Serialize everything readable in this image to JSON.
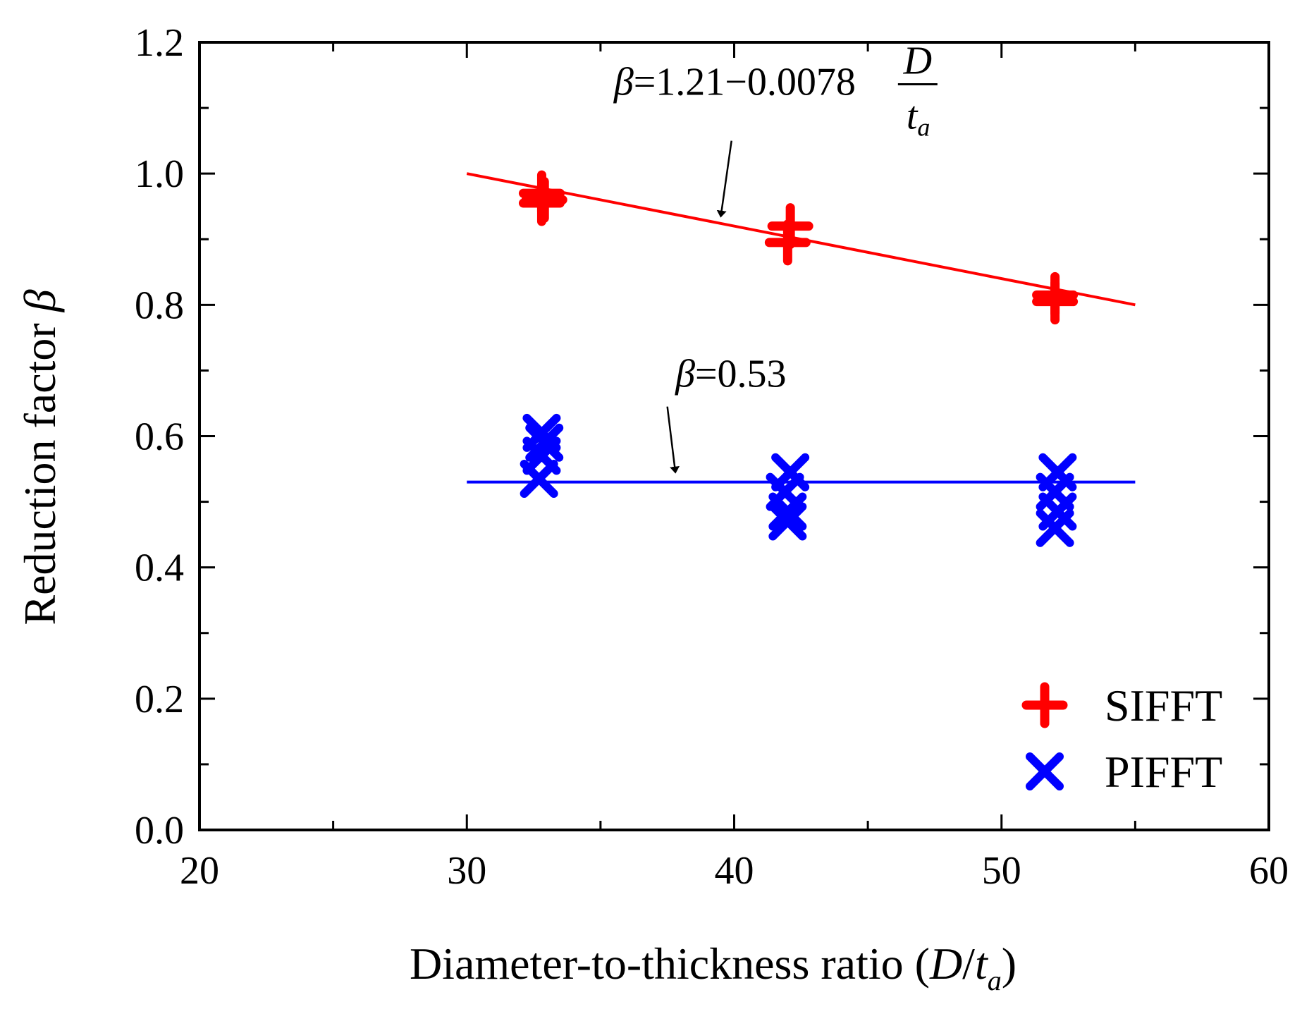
{
  "chart_data": {
    "type": "scatter",
    "title": "",
    "xlabel": "Diameter-to-thickness ratio (",
    "xlabel_var_main": "D",
    "xlabel_slash": "/",
    "xlabel_var_t": "t",
    "xlabel_var_sub": "a",
    "xlabel_close": ")",
    "ylabel": "Reduction factor ",
    "ylabel_var": "β",
    "xlim": [
      20,
      60
    ],
    "ylim": [
      0.0,
      1.2
    ],
    "xticks": [
      "20",
      "30",
      "40",
      "50",
      "60"
    ],
    "yticks": [
      "0.0",
      "0.2",
      "0.4",
      "0.6",
      "0.8",
      "1.0",
      "1.2"
    ],
    "grid": false,
    "legend_position": "bottom-right",
    "series": [
      {
        "name": "SIFFT",
        "marker": "plus",
        "color": "#ff0000",
        "points": [
          [
            32.8,
            0.97
          ],
          [
            32.8,
            0.955
          ],
          [
            32.9,
            0.96
          ],
          [
            42.1,
            0.92
          ],
          [
            42.0,
            0.895
          ],
          [
            52.0,
            0.815
          ],
          [
            52.0,
            0.805
          ]
        ]
      },
      {
        "name": "PIFFT",
        "marker": "x",
        "color": "#0000ff",
        "points": [
          [
            32.8,
            0.605
          ],
          [
            32.9,
            0.59
          ],
          [
            32.8,
            0.57
          ],
          [
            32.7,
            0.535
          ],
          [
            42.1,
            0.545
          ],
          [
            41.9,
            0.515
          ],
          [
            42.0,
            0.485
          ],
          [
            42.0,
            0.47
          ],
          [
            52.1,
            0.545
          ],
          [
            52.0,
            0.515
          ],
          [
            52.1,
            0.485
          ],
          [
            52.0,
            0.46
          ]
        ]
      }
    ],
    "fits": [
      {
        "name": "SIFFT fit",
        "color": "#ff0000",
        "x": [
          30,
          55
        ],
        "y": [
          1.0,
          0.8
        ],
        "label_symbol": "β",
        "label_text": "=1.21−0.0078",
        "label_frac_num": "D",
        "label_frac_den": "t",
        "label_frac_den_sub": "a",
        "label_anchor": [
          35.5,
          1.12
        ],
        "arrow_from": [
          39.9,
          1.05
        ],
        "arrow_to": [
          39.5,
          0.935
        ]
      },
      {
        "name": "PIFFT fit",
        "color": "#0000ff",
        "x": [
          30,
          55
        ],
        "y": [
          0.53,
          0.53
        ],
        "label_symbol": "β",
        "label_text": "=0.53",
        "label_anchor": [
          37.8,
          0.675
        ],
        "arrow_from": [
          37.5,
          0.645
        ],
        "arrow_to": [
          37.8,
          0.545
        ]
      }
    ]
  }
}
